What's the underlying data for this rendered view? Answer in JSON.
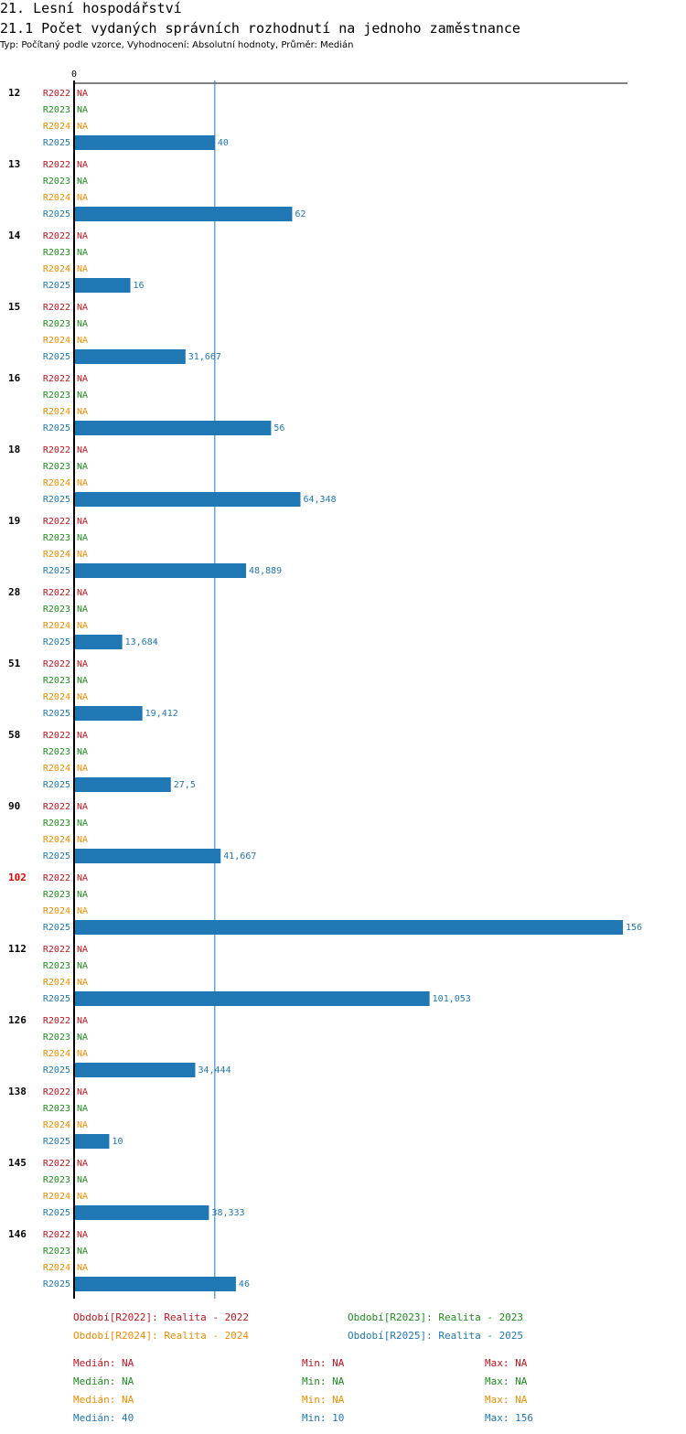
{
  "header": {
    "title": "21. Lesní hospodářství",
    "subtitle": "21.1 Počet vydaných správních rozhodnutí na jednoho zaměstnance",
    "info": "Typ: Počítaný podle vzorce, Vyhodnocení: Absolutní hodnoty, Průměr: Medián"
  },
  "colors": {
    "R2022": "#c0141e",
    "R2023": "#1e8c1e",
    "R2024": "#f08c00",
    "R2025": "#1f77b4",
    "highlight": "#e00000"
  },
  "chart_data": {
    "type": "bar",
    "orientation": "horizontal",
    "axis_label_zero": "0",
    "xlim": [
      0,
      156
    ],
    "median_line": 40,
    "series_names": [
      "R2022",
      "R2023",
      "R2024",
      "R2025"
    ],
    "categories": [
      "12",
      "13",
      "14",
      "15",
      "16",
      "18",
      "19",
      "28",
      "51",
      "58",
      "90",
      "102",
      "112",
      "126",
      "138",
      "145",
      "146"
    ],
    "highlighted_category": "102",
    "series": [
      {
        "name": "R2022",
        "values": [
          null,
          null,
          null,
          null,
          null,
          null,
          null,
          null,
          null,
          null,
          null,
          null,
          null,
          null,
          null,
          null,
          null
        ],
        "labels": [
          "NA",
          "NA",
          "NA",
          "NA",
          "NA",
          "NA",
          "NA",
          "NA",
          "NA",
          "NA",
          "NA",
          "NA",
          "NA",
          "NA",
          "NA",
          "NA",
          "NA"
        ]
      },
      {
        "name": "R2023",
        "values": [
          null,
          null,
          null,
          null,
          null,
          null,
          null,
          null,
          null,
          null,
          null,
          null,
          null,
          null,
          null,
          null,
          null
        ],
        "labels": [
          "NA",
          "NA",
          "NA",
          "NA",
          "NA",
          "NA",
          "NA",
          "NA",
          "NA",
          "NA",
          "NA",
          "NA",
          "NA",
          "NA",
          "NA",
          "NA",
          "NA"
        ]
      },
      {
        "name": "R2024",
        "values": [
          null,
          null,
          null,
          null,
          null,
          null,
          null,
          null,
          null,
          null,
          null,
          null,
          null,
          null,
          null,
          null,
          null
        ],
        "labels": [
          "NA",
          "NA",
          "NA",
          "NA",
          "NA",
          "NA",
          "NA",
          "NA",
          "NA",
          "NA",
          "NA",
          "NA",
          "NA",
          "NA",
          "NA",
          "NA",
          "NA"
        ]
      },
      {
        "name": "R2025",
        "values": [
          40,
          62,
          16,
          31.667,
          56,
          64.348,
          48.889,
          13.684,
          19.412,
          27.5,
          41.667,
          156,
          101.053,
          34.444,
          10,
          38.333,
          46
        ],
        "labels": [
          "40",
          "62",
          "16",
          "31,667",
          "56",
          "64,348",
          "48,889",
          "13,684",
          "19,412",
          "27,5",
          "41,667",
          "156",
          "101,053",
          "34,444",
          "10",
          "38,333",
          "46"
        ]
      }
    ]
  },
  "legend": {
    "items": [
      {
        "text": "Období[R2022]: Realita - 2022",
        "series": "R2022"
      },
      {
        "text": "Období[R2023]: Realita - 2023",
        "series": "R2023"
      },
      {
        "text": "Období[R2024]: Realita - 2024",
        "series": "R2024"
      },
      {
        "text": "Období[R2025]: Realita - 2025",
        "series": "R2025"
      }
    ]
  },
  "stats": [
    {
      "series": "R2022",
      "median": "Medián: NA",
      "min": "Min: NA",
      "max": "Max: NA"
    },
    {
      "series": "R2023",
      "median": "Medián: NA",
      "min": "Min: NA",
      "max": "Max: NA"
    },
    {
      "series": "R2024",
      "median": "Medián: NA",
      "min": "Min: NA",
      "max": "Max: NA"
    },
    {
      "series": "R2025",
      "median": "Medián: 40",
      "min": "Min: 10",
      "max": "Max: 156"
    }
  ]
}
